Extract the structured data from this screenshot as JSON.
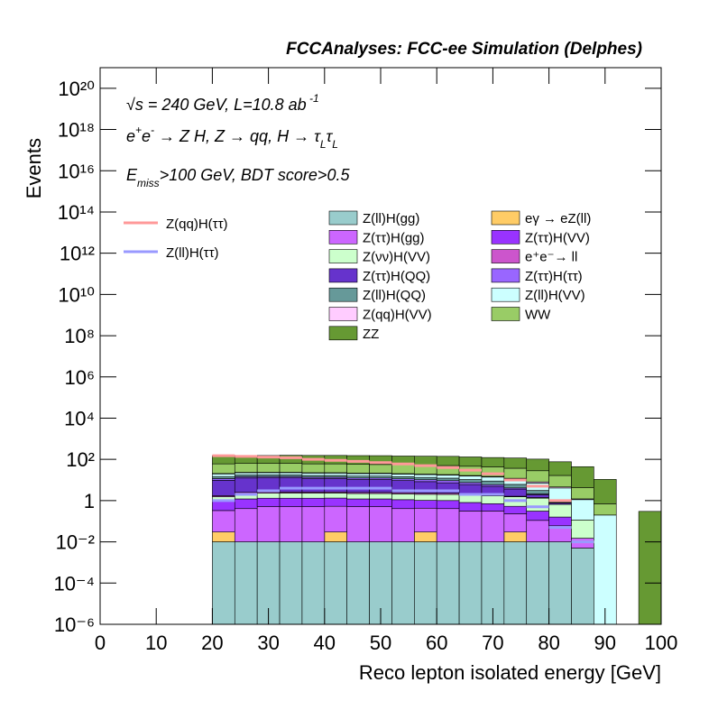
{
  "chart_data": {
    "type": "stacked-histogram-log",
    "title": "FCCAnalyses: FCC-ee Simulation (Delphes)",
    "x_label": "Reco lepton isolated energy [GeV]",
    "y_label": "Events",
    "annotations": [
      [
        {
          "t": "√s = 240 GeV, L=10.8 ab"
        },
        {
          "t": " -1",
          "s": "sup"
        }
      ],
      [
        {
          "t": "e"
        },
        {
          "t": "+",
          "s": "sup"
        },
        {
          "t": "e"
        },
        {
          "t": "-",
          "s": "sup"
        },
        {
          "t": " → Z H, Z  → qq, H  → τ"
        },
        {
          "t": "L",
          "s": "sub"
        },
        {
          "t": "τ"
        },
        {
          "t": "L",
          "s": "sub"
        }
      ],
      [
        {
          "t": "E"
        },
        {
          "t": "miss",
          "s": "sub"
        },
        {
          "t": ">100 GeV, BDT score>0.5"
        }
      ]
    ],
    "log_y": true,
    "xlim": [
      0,
      100
    ],
    "xticks": [
      0,
      10,
      20,
      30,
      40,
      50,
      60,
      70,
      80,
      90,
      100
    ],
    "ylim": [
      1e-06,
      1e+21
    ],
    "yticks": [
      {
        "value": 1e-06,
        "label": "10⁻⁶"
      },
      {
        "value": 0.0001,
        "label": "10⁻⁴"
      },
      {
        "value": 0.01,
        "label": "10⁻²"
      },
      1,
      {
        "value": 100,
        "label": "10²"
      },
      {
        "value": 10000.0,
        "label": "10⁴"
      },
      {
        "value": 1000000.0,
        "label": "10⁶"
      },
      {
        "value": 100000000.0,
        "label": "10⁸"
      },
      {
        "value": 10000000000.0,
        "label": "10¹⁰"
      },
      {
        "value": 1000000000000.0,
        "label": "10¹²"
      },
      {
        "value": 100000000000000.0,
        "label": "10¹⁴"
      },
      {
        "value": 1e+16,
        "label": "10¹⁶"
      },
      {
        "value": 1e+18,
        "label": "10¹⁸"
      },
      {
        "value": 1e+20,
        "label": "10²⁰"
      }
    ],
    "bins": [
      20,
      24,
      28,
      32,
      36,
      40,
      44,
      48,
      52,
      56,
      60,
      64,
      68,
      72,
      76,
      80,
      84,
      88,
      92,
      96,
      100
    ],
    "series": [
      {
        "name": "Z(ll)H(gg)",
        "color": "#99cccc",
        "values": [
          0.01,
          0.01,
          0.01,
          0.01,
          0.01,
          0.01,
          0.01,
          0.01,
          0.01,
          0.01,
          0.01,
          0.01,
          0.01,
          0.01,
          0.01,
          0.01,
          0.005,
          0,
          0,
          0
        ]
      },
      {
        "name": "eγ → eZ(ll)",
        "color": "#ffcc66",
        "values": [
          0.02,
          0,
          0,
          0,
          0,
          0.02,
          0,
          0,
          0,
          0.02,
          0,
          0,
          0,
          0.02,
          0,
          0,
          0,
          0,
          0,
          0
        ]
      },
      {
        "name": "Z(ττ)H(gg)",
        "color": "#cc66ff",
        "values": [
          0.3,
          0.4,
          0.5,
          0.5,
          0.5,
          0.5,
          0.5,
          0.5,
          0.4,
          0.4,
          0.4,
          0.3,
          0.3,
          0.2,
          0.1,
          0.05,
          0.01,
          0,
          0,
          0
        ]
      },
      {
        "name": "Z(ττ)H(VV)",
        "color": "#9933ff",
        "values": [
          0.7,
          0.8,
          0.8,
          0.8,
          0.8,
          0.8,
          0.7,
          0.7,
          0.7,
          0.6,
          0.6,
          0.5,
          0.4,
          0.3,
          0.2,
          0.1,
          0,
          0,
          0,
          0
        ]
      },
      {
        "name": "Z(νν)H(VV)",
        "color": "#ccffcc",
        "values": [
          0.5,
          1,
          1,
          1,
          1,
          1,
          1,
          1,
          1,
          1,
          1,
          1,
          1,
          1,
          1,
          0.5,
          0.1,
          0,
          0,
          0
        ]
      },
      {
        "name": "e⁺e⁻→ ll",
        "color": "#cc55cc",
        "values": [
          0.2,
          0.3,
          0.3,
          0.3,
          0.3,
          0.3,
          0.3,
          0.3,
          0.3,
          0.3,
          0.3,
          0.2,
          0.2,
          0.1,
          0.1,
          0,
          0,
          0,
          0,
          0
        ]
      },
      {
        "name": "Z(ττ)H(QQ)",
        "color": "#6633cc",
        "values": [
          8,
          10,
          10,
          10,
          9,
          9,
          8,
          8,
          7,
          6,
          5,
          4,
          3,
          2,
          0.5,
          0.1,
          0,
          0,
          0,
          0
        ]
      },
      {
        "name": "Z(ττ)H(ττ)",
        "color": "#9966ff",
        "values": [
          2,
          2,
          2,
          2,
          2,
          2,
          2,
          2,
          2,
          2,
          2,
          1.5,
          1,
          0.5,
          0.2,
          0.05,
          0,
          0,
          0,
          0
        ]
      },
      {
        "name": "Z(ll)H(QQ)",
        "color": "#669999",
        "values": [
          3,
          3,
          3,
          3,
          3,
          3,
          3,
          3,
          3,
          3,
          3,
          3,
          3,
          2,
          1,
          0.3,
          0,
          0,
          0,
          0
        ]
      },
      {
        "name": "Z(ll)H(VV)",
        "color": "#ccffff",
        "values": [
          5,
          5,
          5,
          5,
          5,
          5,
          5,
          5,
          5,
          5,
          5,
          5,
          5,
          5,
          4,
          3,
          1,
          0.2,
          0,
          0
        ]
      },
      {
        "name": "Z(qq)H(VV)",
        "color": "#ffccff",
        "values": [
          1,
          1,
          1,
          1,
          1,
          1,
          1,
          1,
          1,
          1,
          1,
          1,
          1,
          1,
          1,
          0.5,
          0.1,
          0,
          0,
          0
        ]
      },
      {
        "name": "WW",
        "color": "#99cc66",
        "values": [
          40,
          40,
          40,
          40,
          38,
          38,
          36,
          35,
          35,
          34,
          32,
          30,
          28,
          25,
          20,
          12,
          3,
          0.5,
          0,
          0
        ]
      },
      {
        "name": "ZZ",
        "color": "#669933",
        "values": [
          90,
          90,
          90,
          95,
          95,
          95,
          95,
          95,
          90,
          90,
          90,
          85,
          80,
          80,
          75,
          60,
          40,
          10,
          0,
          0.3
        ]
      }
    ],
    "line_series": [
      {
        "name": "Z(qq)H(ττ)",
        "color": "#ff9999",
        "values": [
          150,
          140,
          130,
          120,
          100,
          90,
          80,
          70,
          60,
          50,
          40,
          30,
          20,
          10,
          5,
          1,
          0.01,
          0,
          0,
          0
        ]
      },
      {
        "name": "Z(ll)H(ττ)",
        "color": "#9999ff",
        "values": [
          1,
          2,
          3,
          4,
          4,
          4,
          4,
          4,
          3,
          3,
          3,
          2,
          2,
          1,
          0.5,
          0.05,
          0.01,
          0,
          0,
          0
        ]
      }
    ]
  }
}
